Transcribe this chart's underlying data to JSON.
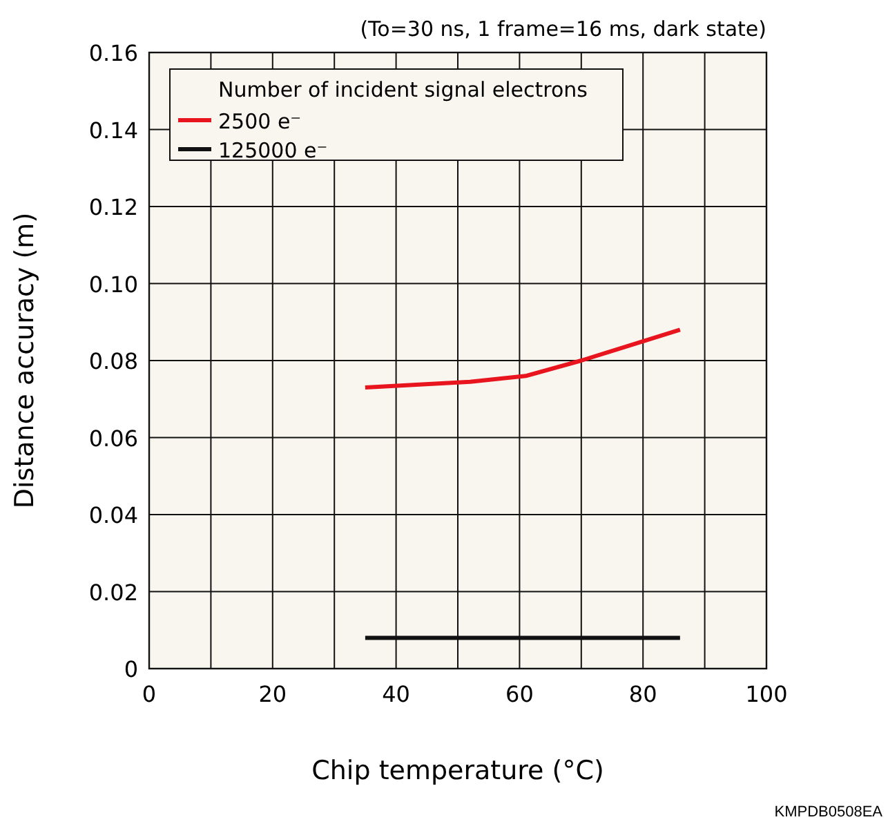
{
  "chart_data": {
    "type": "line",
    "subtitle": "(To=30 ns, 1 frame=16 ms, dark state)",
    "xlabel": "Chip temperature (°C)",
    "ylabel": "Distance accuracy (m)",
    "legend_title": "Number of incident signal electrons",
    "annotations": [
      "KMPDB0508EA"
    ],
    "xlim": [
      0,
      100
    ],
    "xticks": [
      0,
      {
        "value": 10,
        "label": null
      },
      20,
      {
        "value": 30,
        "label": null
      },
      40,
      {
        "value": 50,
        "label": null
      },
      60,
      {
        "value": 70,
        "label": null
      },
      80,
      {
        "value": 90,
        "label": null
      },
      100
    ],
    "ylim": [
      0,
      0.16
    ],
    "yticks": [
      0,
      0.02,
      0.04,
      0.06,
      0.08,
      {
        "value": 0.1,
        "label": "0.10"
      },
      0.12,
      0.14,
      0.16
    ],
    "grid": true,
    "legend": "top left",
    "marker": "none",
    "line_style": "solid",
    "series": [
      {
        "name": "2500 e⁻",
        "color": "#e8141e",
        "x": [
          35,
          52,
          61,
          70,
          86
        ],
        "values": [
          0.073,
          0.0745,
          0.076,
          0.08,
          0.088
        ]
      },
      {
        "name": "125000 e⁻",
        "color": "#111111",
        "x": [
          35,
          86
        ],
        "values": [
          0.008,
          0.008
        ]
      }
    ]
  }
}
